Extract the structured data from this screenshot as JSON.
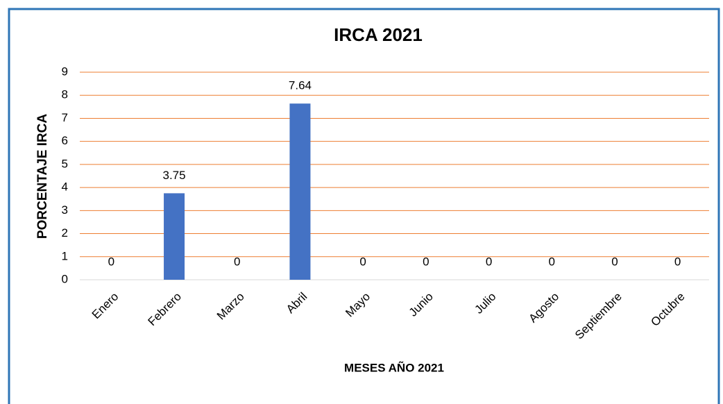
{
  "chart_data": {
    "type": "bar",
    "title": "IRCA 2021",
    "x_label": "MESES AÑO 2021",
    "y_label": "PORCENTAJE IRCA",
    "categories": [
      "Enero",
      "Febrero",
      "Marzo",
      "Abril",
      "Mayo",
      "Junio",
      "Julio",
      "Agosto",
      "Septiembre",
      "Octubre"
    ],
    "values": [
      0,
      3.75,
      0,
      7.64,
      0,
      0,
      0,
      0,
      0,
      0
    ],
    "color": "#4472c4",
    "grid_color": "#ed7d31",
    "ylim": [
      0,
      9
    ],
    "yticks": [
      0,
      1,
      2,
      3,
      4,
      5,
      6,
      7,
      8,
      9
    ],
    "grid": true
  }
}
